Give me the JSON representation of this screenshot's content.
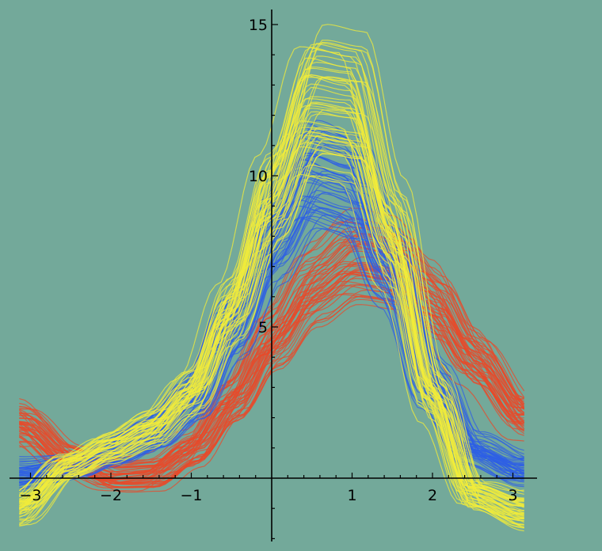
{
  "chart_data": {
    "type": "line",
    "title": "",
    "xlabel": "",
    "ylabel": "",
    "xlim": [
      -3.14,
      3.14
    ],
    "ylim": [
      -2,
      15.5
    ],
    "x_ticks": [
      -3,
      -2,
      -1,
      1,
      2,
      3
    ],
    "x_tick_labels": [
      "−3",
      "−2",
      "−1",
      "1",
      "2",
      "3"
    ],
    "y_ticks": [
      5,
      10,
      15
    ],
    "y_tick_labels": [
      "5",
      "10",
      "15"
    ],
    "grid": false,
    "legend": "none",
    "background_color": "#73a99a",
    "series": [
      {
        "color": "#e84a2a",
        "line_count": 50,
        "mean_curve": {
          "x": [
            -3.14,
            -2.5,
            -2.0,
            -1.5,
            -1.0,
            -0.5,
            0.0,
            0.5,
            1.0,
            1.5,
            2.0,
            2.5,
            3.14
          ],
          "y": [
            1.8,
            0.6,
            0.1,
            0.2,
            1.0,
            2.6,
            4.6,
            6.3,
            7.2,
            7.0,
            5.8,
            4.0,
            2.1
          ]
        }
      },
      {
        "color": "#2d5fe6",
        "line_count": 50,
        "mean_curve": {
          "x": [
            -3.14,
            -2.5,
            -2.0,
            -1.5,
            -1.0,
            -0.5,
            0.0,
            0.5,
            1.0,
            1.5,
            2.0,
            2.5,
            3.14
          ],
          "y": [
            0.2,
            0.4,
            0.9,
            1.5,
            2.6,
            5.0,
            8.0,
            10.2,
            9.8,
            7.0,
            3.2,
            1.0,
            0.3
          ]
        }
      },
      {
        "color": "#f2ec3a",
        "line_count": 50,
        "mean_curve": {
          "x": [
            -3.14,
            -2.5,
            -2.0,
            -1.5,
            -1.0,
            -0.5,
            0.0,
            0.5,
            1.0,
            1.5,
            2.0,
            2.5,
            3.14
          ],
          "y": [
            -1.0,
            0.4,
            1.0,
            1.6,
            2.8,
            5.6,
            9.4,
            12.6,
            12.4,
            8.2,
            2.8,
            -0.6,
            -1.2
          ]
        }
      }
    ]
  }
}
